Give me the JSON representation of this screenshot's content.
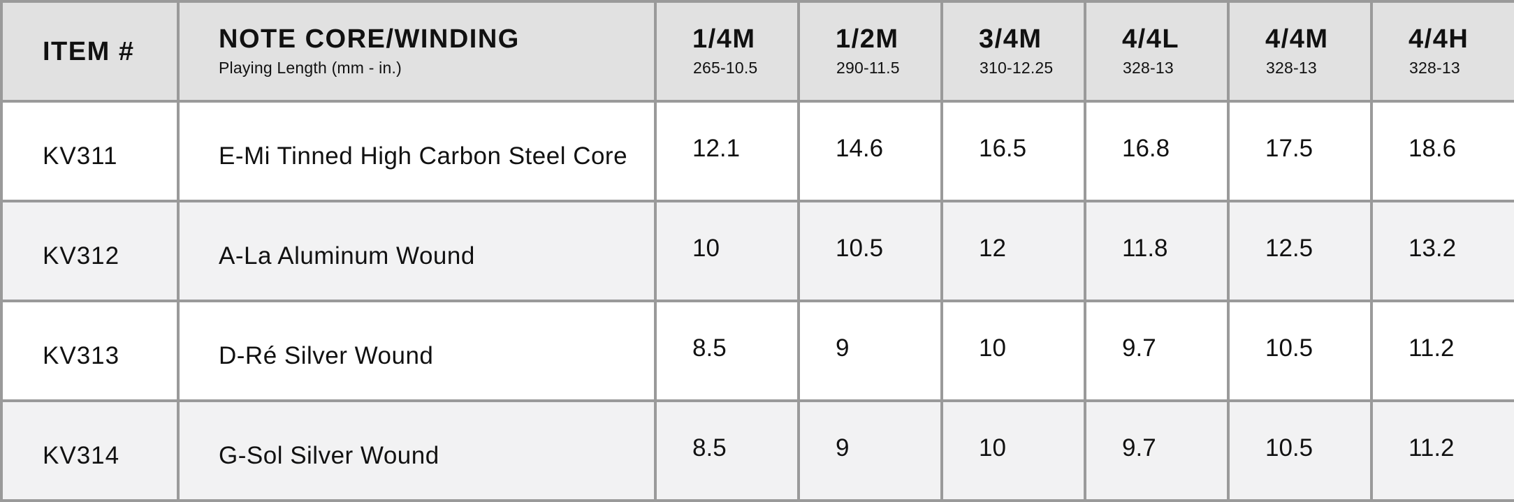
{
  "header": {
    "item_label": "ITEM #",
    "note_label": "NOTE CORE/WINDING",
    "note_sublabel": "Playing Length (mm - in.)",
    "sizes": [
      {
        "label": "1/4M",
        "length": "265-10.5"
      },
      {
        "label": "1/2M",
        "length": "290-11.5"
      },
      {
        "label": "3/4M",
        "length": "310-12.25"
      },
      {
        "label": "4/4L",
        "length": "328-13"
      },
      {
        "label": "4/4M",
        "length": "328-13"
      },
      {
        "label": "4/4H",
        "length": "328-13"
      }
    ]
  },
  "rows": [
    {
      "item": "KV311",
      "note": "E-Mi Tinned High Carbon Steel Core",
      "values": [
        "12.1",
        "14.6",
        "16.5",
        "16.8",
        "17.5",
        "18.6"
      ]
    },
    {
      "item": "KV312",
      "note": "A-La Aluminum Wound",
      "values": [
        "10",
        "10.5",
        "12",
        "11.8",
        "12.5",
        "13.2"
      ]
    },
    {
      "item": "KV313",
      "note": "D-Ré Silver Wound",
      "values": [
        "8.5",
        "9",
        "10",
        "9.7",
        "10.5",
        "11.2"
      ]
    },
    {
      "item": "KV314",
      "note": "G-Sol Silver Wound",
      "values": [
        "8.5",
        "9",
        "10",
        "9.7",
        "10.5",
        "11.2"
      ]
    }
  ]
}
